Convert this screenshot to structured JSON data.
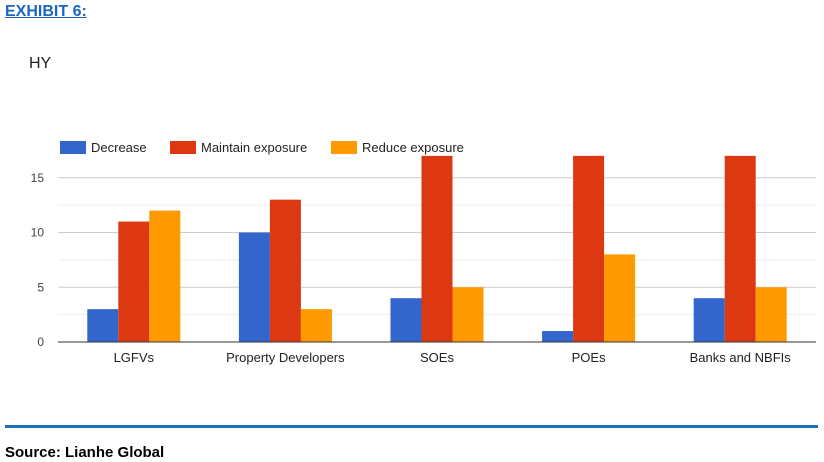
{
  "header": {
    "exhibit_label": "EXHIBIT 6:"
  },
  "footer": {
    "source": "Source: Lianhe Global"
  },
  "colors": {
    "decrease": "#3366cc",
    "maintain": "#dc3912",
    "reduce": "#ff9900",
    "rule": "#1a6fb5",
    "exhibit": "#1a66c2"
  },
  "chart_data": {
    "type": "bar",
    "title": "HY",
    "xlabel": "",
    "ylabel": "",
    "categories": [
      "LGFVs",
      "Property Developers",
      "SOEs",
      "POEs",
      "Banks and NBFIs"
    ],
    "series": [
      {
        "name": "Decrease",
        "values": [
          3,
          10,
          4,
          1,
          4
        ]
      },
      {
        "name": "Maintain exposure",
        "values": [
          11,
          13,
          17,
          17,
          17
        ]
      },
      {
        "name": "Reduce exposure",
        "values": [
          12,
          3,
          5,
          8,
          5
        ]
      }
    ],
    "ylim": [
      0,
      17
    ],
    "yticks": [
      0,
      5,
      10,
      15
    ],
    "grid": true,
    "legend_position": "top-left"
  }
}
